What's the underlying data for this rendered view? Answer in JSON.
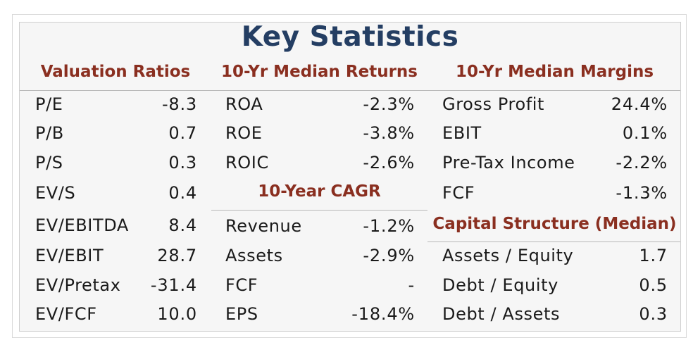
{
  "title": "Key Statistics",
  "valuation": {
    "heading": "Valuation Ratios",
    "rows": [
      {
        "label": "P/E",
        "value": "-8.3"
      },
      {
        "label": "P/B",
        "value": "0.7"
      },
      {
        "label": "P/S",
        "value": "0.3"
      },
      {
        "label": "EV/S",
        "value": "0.4"
      },
      {
        "label": "EV/EBITDA",
        "value": "8.4"
      },
      {
        "label": "EV/EBIT",
        "value": "28.7"
      },
      {
        "label": "EV/Pretax",
        "value": "-31.4"
      },
      {
        "label": "EV/FCF",
        "value": "10.0"
      }
    ]
  },
  "returns": {
    "heading": "10-Yr Median Returns",
    "rows": [
      {
        "label": "ROA",
        "value": "-2.3%"
      },
      {
        "label": "ROE",
        "value": "-3.8%"
      },
      {
        "label": "ROIC",
        "value": "-2.6%"
      }
    ]
  },
  "cagr": {
    "heading": "10-Year CAGR",
    "rows": [
      {
        "label": "Revenue",
        "value": "-1.2%"
      },
      {
        "label": "Assets",
        "value": "-2.9%"
      },
      {
        "label": "FCF",
        "value": "-"
      },
      {
        "label": "EPS",
        "value": "-18.4%"
      }
    ]
  },
  "margins": {
    "heading": "10-Yr Median Margins",
    "rows": [
      {
        "label": "Gross Profit",
        "value": "24.4%"
      },
      {
        "label": "EBIT",
        "value": "0.1%"
      },
      {
        "label": "Pre-Tax Income",
        "value": "-2.2%"
      },
      {
        "label": "FCF",
        "value": "-1.3%"
      }
    ]
  },
  "capital": {
    "heading": "Capital Structure (Median)",
    "rows": [
      {
        "label": "Assets / Equity",
        "value": "1.7"
      },
      {
        "label": "Debt / Equity",
        "value": "0.5"
      },
      {
        "label": "Debt / Assets",
        "value": "0.3"
      }
    ]
  }
}
